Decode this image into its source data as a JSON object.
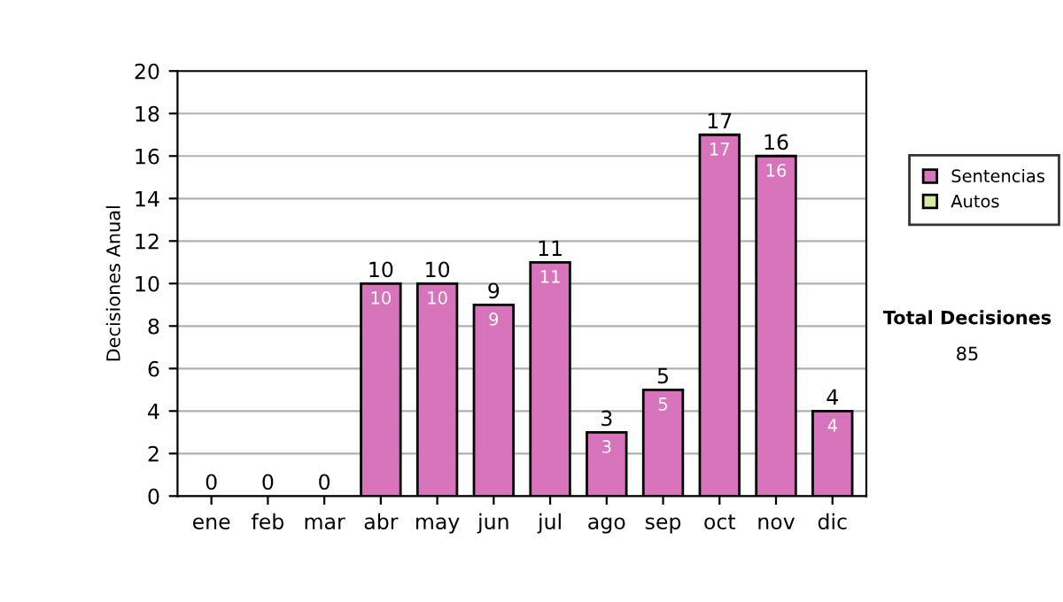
{
  "chart_data": {
    "type": "bar",
    "ylabel": "Decisiones Anual",
    "stacked": true,
    "categories": [
      "ene",
      "feb",
      "mar",
      "abr",
      "may",
      "jun",
      "jul",
      "ago",
      "sep",
      "oct",
      "nov",
      "dic"
    ],
    "series": [
      {
        "name": "Sentencias",
        "color": "#d874bc",
        "values": [
          0,
          0,
          0,
          10,
          10,
          9,
          11,
          3,
          5,
          17,
          16,
          4
        ],
        "value_labels": [
          null,
          null,
          null,
          "10",
          "10",
          "9",
          "11",
          "3",
          "5",
          "17",
          "16",
          "4"
        ]
      },
      {
        "name": "Autos",
        "color": "#d4eca4",
        "values": [
          0,
          0,
          0,
          0,
          0,
          0,
          0,
          0,
          0,
          0,
          0,
          0
        ]
      }
    ],
    "totals": [
      "0",
      "0",
      "0",
      "10",
      "10",
      "9",
      "11",
      "3",
      "5",
      "17",
      "16",
      "4"
    ],
    "ylim": [
      0,
      20
    ],
    "yticks": [
      0,
      2,
      4,
      6,
      8,
      10,
      12,
      14,
      16,
      18,
      20
    ],
    "grid": "y",
    "legend": "right",
    "annotations": [
      "Total Decisiones",
      "85"
    ]
  }
}
